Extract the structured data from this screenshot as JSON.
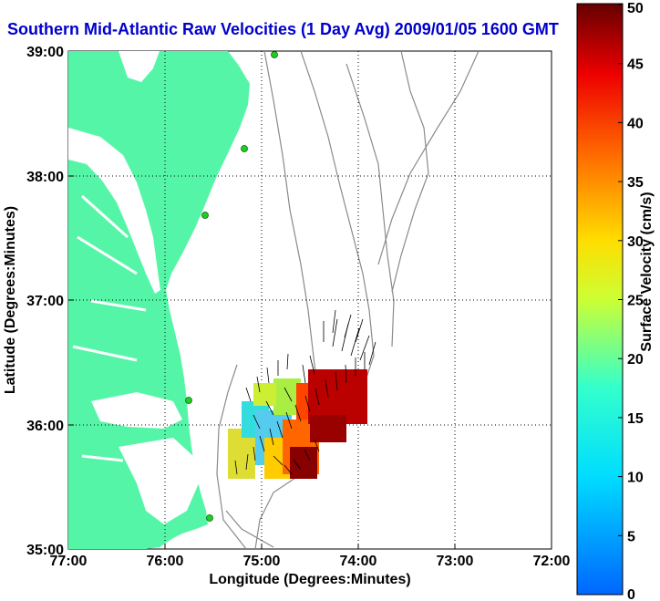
{
  "title": "Southern Mid-Atlantic Raw Velocities (1 Day Avg) 2009/01/05 1600 GMT",
  "xlabel": "Longitude (Degrees:Minutes)",
  "ylabel": "Latitude (Degrees:Minutes)",
  "x_ticks": [
    "77:00",
    "76:00",
    "75:00",
    "74:00",
    "73:00",
    "72:00"
  ],
  "y_ticks": [
    "39:00",
    "38:00",
    "37:00",
    "36:00",
    "35:00"
  ],
  "colorbar": {
    "label": "Surface Velocity (cm/s)",
    "min": 0,
    "max": 50,
    "ticks": [
      "0",
      "5",
      "10",
      "15",
      "20",
      "25",
      "30",
      "35",
      "40",
      "45",
      "50"
    ]
  },
  "colors": {
    "land": "#55f5a8",
    "title": "#0000cc",
    "bathymetry": "#8a8a8a",
    "station": "#22cc22"
  }
}
